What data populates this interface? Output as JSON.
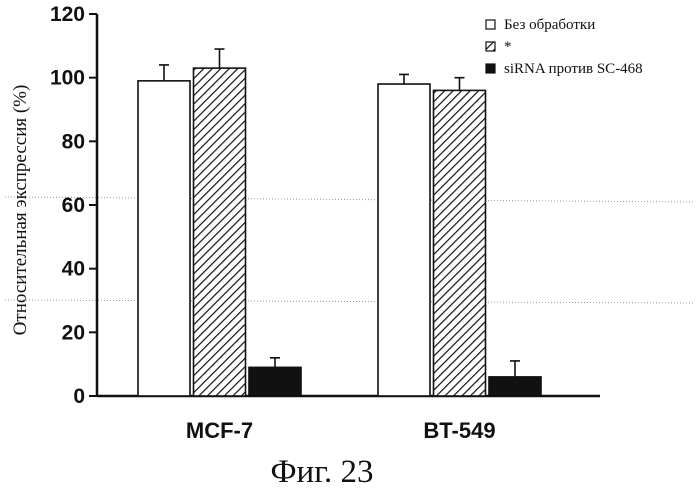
{
  "chart_data": {
    "type": "bar",
    "categories": [
      "MCF-7",
      "BT-549"
    ],
    "series": [
      {
        "name": "Без обработки",
        "values": [
          99,
          98
        ],
        "errors": [
          5,
          3
        ],
        "fill": "white"
      },
      {
        "name": "*",
        "values": [
          103,
          96
        ],
        "errors": [
          6,
          4
        ],
        "fill": "hatch"
      },
      {
        "name": "siRNA против SC-468",
        "values": [
          9,
          6
        ],
        "errors": [
          3,
          5
        ],
        "fill": "black"
      }
    ],
    "title": "",
    "xlabel": "",
    "ylabel": "Относительная экспрессия (%)",
    "ylim": [
      0,
      120
    ],
    "yticks": [
      "0",
      "20",
      "40",
      "60",
      "80",
      "100",
      "120"
    ],
    "grid": false,
    "legend_position": "top-right"
  },
  "caption": "Фиг. 23",
  "colors": {
    "ink": "#111111",
    "background": "#ffffff"
  }
}
